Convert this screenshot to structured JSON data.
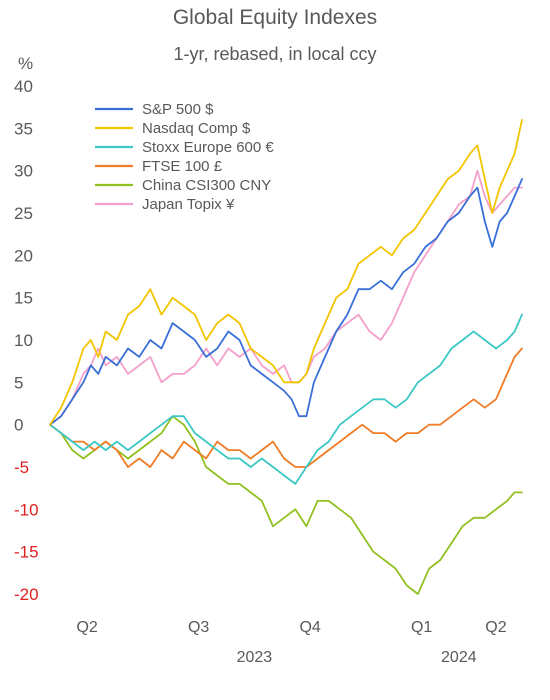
{
  "chart_data": {
    "type": "line",
    "title": "Global Equity Indexes",
    "subtitle": "1-yr, rebased, in local ccy",
    "ylabel": "%",
    "ylim": [
      -20,
      40
    ],
    "yticks": [
      40,
      35,
      30,
      25,
      20,
      15,
      10,
      5,
      0,
      -5,
      -10,
      -15,
      -20
    ],
    "negative_tick_color": "#e02020",
    "positive_tick_color": "#595959",
    "grid": false,
    "legend_position": "top-left",
    "x_range": [
      0,
      12.3
    ],
    "x_unit": "months since start of Q2 2023",
    "xticks": [
      {
        "label": "Q2",
        "x": 1.0
      },
      {
        "label": "Q3",
        "x": 4.0
      },
      {
        "label": "Q4",
        "x": 7.0
      },
      {
        "label": "Q1",
        "x": 10.0
      },
      {
        "label": "Q2",
        "x": 12.0
      }
    ],
    "year_labels": [
      {
        "label": "2023",
        "x": 5.5
      },
      {
        "label": "2024",
        "x": 11.0
      }
    ],
    "series": [
      {
        "name": "S&P 500 $",
        "color": "#3a6fd8",
        "points": [
          [
            0,
            0
          ],
          [
            0.3,
            1
          ],
          [
            0.6,
            3
          ],
          [
            0.9,
            5
          ],
          [
            1.1,
            7
          ],
          [
            1.3,
            6
          ],
          [
            1.5,
            8
          ],
          [
            1.8,
            7
          ],
          [
            2.1,
            9
          ],
          [
            2.4,
            8
          ],
          [
            2.7,
            10
          ],
          [
            3.0,
            9
          ],
          [
            3.3,
            12
          ],
          [
            3.6,
            11
          ],
          [
            3.9,
            10
          ],
          [
            4.2,
            8
          ],
          [
            4.5,
            9
          ],
          [
            4.8,
            11
          ],
          [
            5.1,
            10
          ],
          [
            5.4,
            7
          ],
          [
            5.7,
            6
          ],
          [
            6.0,
            5
          ],
          [
            6.3,
            4
          ],
          [
            6.5,
            3
          ],
          [
            6.7,
            1
          ],
          [
            6.9,
            1
          ],
          [
            7.1,
            5
          ],
          [
            7.4,
            8
          ],
          [
            7.7,
            11
          ],
          [
            8.0,
            13
          ],
          [
            8.3,
            16
          ],
          [
            8.6,
            16
          ],
          [
            8.9,
            17
          ],
          [
            9.2,
            16
          ],
          [
            9.5,
            18
          ],
          [
            9.8,
            19
          ],
          [
            10.1,
            21
          ],
          [
            10.4,
            22
          ],
          [
            10.7,
            24
          ],
          [
            11.0,
            25
          ],
          [
            11.3,
            27
          ],
          [
            11.5,
            28
          ],
          [
            11.7,
            24
          ],
          [
            11.9,
            21
          ],
          [
            12.1,
            24
          ],
          [
            12.3,
            25
          ],
          [
            12.5,
            27
          ],
          [
            12.7,
            29
          ]
        ]
      },
      {
        "name": "Nasdaq Comp $",
        "color": "#f2c500",
        "points": [
          [
            0,
            0
          ],
          [
            0.3,
            2
          ],
          [
            0.6,
            5
          ],
          [
            0.9,
            9
          ],
          [
            1.1,
            10
          ],
          [
            1.3,
            8
          ],
          [
            1.5,
            11
          ],
          [
            1.8,
            10
          ],
          [
            2.1,
            13
          ],
          [
            2.4,
            14
          ],
          [
            2.7,
            16
          ],
          [
            3.0,
            13
          ],
          [
            3.3,
            15
          ],
          [
            3.6,
            14
          ],
          [
            3.9,
            13
          ],
          [
            4.2,
            10
          ],
          [
            4.5,
            12
          ],
          [
            4.8,
            13
          ],
          [
            5.1,
            12
          ],
          [
            5.4,
            9
          ],
          [
            5.7,
            8
          ],
          [
            6.0,
            7
          ],
          [
            6.3,
            5
          ],
          [
            6.5,
            5
          ],
          [
            6.7,
            5
          ],
          [
            6.9,
            6
          ],
          [
            7.1,
            9
          ],
          [
            7.4,
            12
          ],
          [
            7.7,
            15
          ],
          [
            8.0,
            16
          ],
          [
            8.3,
            19
          ],
          [
            8.6,
            20
          ],
          [
            8.9,
            21
          ],
          [
            9.2,
            20
          ],
          [
            9.5,
            22
          ],
          [
            9.8,
            23
          ],
          [
            10.1,
            25
          ],
          [
            10.4,
            27
          ],
          [
            10.7,
            29
          ],
          [
            11.0,
            30
          ],
          [
            11.3,
            32
          ],
          [
            11.5,
            33
          ],
          [
            11.7,
            29
          ],
          [
            11.9,
            25
          ],
          [
            12.1,
            28
          ],
          [
            12.3,
            30
          ],
          [
            12.5,
            32
          ],
          [
            12.7,
            36
          ]
        ]
      },
      {
        "name": "Stoxx Europe 600 €",
        "color": "#3cc8c4",
        "points": [
          [
            0,
            0
          ],
          [
            0.3,
            -1
          ],
          [
            0.6,
            -2
          ],
          [
            0.9,
            -3
          ],
          [
            1.2,
            -2
          ],
          [
            1.5,
            -3
          ],
          [
            1.8,
            -2
          ],
          [
            2.1,
            -3
          ],
          [
            2.4,
            -2
          ],
          [
            2.7,
            -1
          ],
          [
            3.0,
            0
          ],
          [
            3.3,
            1
          ],
          [
            3.6,
            1
          ],
          [
            3.9,
            -1
          ],
          [
            4.2,
            -2
          ],
          [
            4.5,
            -3
          ],
          [
            4.8,
            -4
          ],
          [
            5.1,
            -4
          ],
          [
            5.4,
            -5
          ],
          [
            5.7,
            -4
          ],
          [
            6.0,
            -5
          ],
          [
            6.3,
            -6
          ],
          [
            6.6,
            -7
          ],
          [
            6.9,
            -5
          ],
          [
            7.2,
            -3
          ],
          [
            7.5,
            -2
          ],
          [
            7.8,
            0
          ],
          [
            8.1,
            1
          ],
          [
            8.4,
            2
          ],
          [
            8.7,
            3
          ],
          [
            9.0,
            3
          ],
          [
            9.3,
            2
          ],
          [
            9.6,
            3
          ],
          [
            9.9,
            5
          ],
          [
            10.2,
            6
          ],
          [
            10.5,
            7
          ],
          [
            10.8,
            9
          ],
          [
            11.1,
            10
          ],
          [
            11.4,
            11
          ],
          [
            11.7,
            10
          ],
          [
            12.0,
            9
          ],
          [
            12.3,
            10
          ],
          [
            12.5,
            11
          ],
          [
            12.7,
            13
          ]
        ]
      },
      {
        "name": "FTSE 100 £",
        "color": "#f07c28",
        "points": [
          [
            0,
            0
          ],
          [
            0.3,
            -1
          ],
          [
            0.6,
            -2
          ],
          [
            0.9,
            -2
          ],
          [
            1.2,
            -3
          ],
          [
            1.5,
            -2
          ],
          [
            1.8,
            -3
          ],
          [
            2.1,
            -5
          ],
          [
            2.4,
            -4
          ],
          [
            2.7,
            -5
          ],
          [
            3.0,
            -3
          ],
          [
            3.3,
            -4
          ],
          [
            3.6,
            -2
          ],
          [
            3.9,
            -3
          ],
          [
            4.2,
            -4
          ],
          [
            4.5,
            -2
          ],
          [
            4.8,
            -3
          ],
          [
            5.1,
            -3
          ],
          [
            5.4,
            -4
          ],
          [
            5.7,
            -3
          ],
          [
            6.0,
            -2
          ],
          [
            6.3,
            -4
          ],
          [
            6.6,
            -5
          ],
          [
            6.9,
            -5
          ],
          [
            7.2,
            -4
          ],
          [
            7.5,
            -3
          ],
          [
            7.8,
            -2
          ],
          [
            8.1,
            -1
          ],
          [
            8.4,
            0
          ],
          [
            8.7,
            -1
          ],
          [
            9.0,
            -1
          ],
          [
            9.3,
            -2
          ],
          [
            9.6,
            -1
          ],
          [
            9.9,
            -1
          ],
          [
            10.2,
            0
          ],
          [
            10.5,
            0
          ],
          [
            10.8,
            1
          ],
          [
            11.1,
            2
          ],
          [
            11.4,
            3
          ],
          [
            11.7,
            2
          ],
          [
            12.0,
            3
          ],
          [
            12.3,
            6
          ],
          [
            12.5,
            8
          ],
          [
            12.7,
            9
          ]
        ]
      },
      {
        "name": "China CSI300  CNY",
        "color": "#92c020",
        "points": [
          [
            0,
            0
          ],
          [
            0.3,
            -1
          ],
          [
            0.6,
            -3
          ],
          [
            0.9,
            -4
          ],
          [
            1.2,
            -3
          ],
          [
            1.5,
            -2
          ],
          [
            1.8,
            -3
          ],
          [
            2.1,
            -4
          ],
          [
            2.4,
            -3
          ],
          [
            2.7,
            -2
          ],
          [
            3.0,
            -1
          ],
          [
            3.3,
            1
          ],
          [
            3.6,
            0
          ],
          [
            3.9,
            -2
          ],
          [
            4.2,
            -5
          ],
          [
            4.5,
            -6
          ],
          [
            4.8,
            -7
          ],
          [
            5.1,
            -7
          ],
          [
            5.4,
            -8
          ],
          [
            5.7,
            -9
          ],
          [
            6.0,
            -12
          ],
          [
            6.3,
            -11
          ],
          [
            6.6,
            -10
          ],
          [
            6.9,
            -12
          ],
          [
            7.2,
            -9
          ],
          [
            7.5,
            -9
          ],
          [
            7.8,
            -10
          ],
          [
            8.1,
            -11
          ],
          [
            8.4,
            -13
          ],
          [
            8.7,
            -15
          ],
          [
            9.0,
            -16
          ],
          [
            9.3,
            -17
          ],
          [
            9.6,
            -19
          ],
          [
            9.9,
            -20
          ],
          [
            10.2,
            -17
          ],
          [
            10.5,
            -16
          ],
          [
            10.8,
            -14
          ],
          [
            11.1,
            -12
          ],
          [
            11.4,
            -11
          ],
          [
            11.7,
            -11
          ],
          [
            12.0,
            -10
          ],
          [
            12.3,
            -9
          ],
          [
            12.5,
            -8
          ],
          [
            12.7,
            -8
          ]
        ]
      },
      {
        "name": "Japan Topix ¥",
        "color": "#f4a0cc",
        "points": [
          [
            0,
            0
          ],
          [
            0.3,
            1
          ],
          [
            0.6,
            3
          ],
          [
            0.9,
            6
          ],
          [
            1.1,
            7
          ],
          [
            1.3,
            9
          ],
          [
            1.5,
            7
          ],
          [
            1.8,
            8
          ],
          [
            2.1,
            6
          ],
          [
            2.4,
            7
          ],
          [
            2.7,
            8
          ],
          [
            3.0,
            5
          ],
          [
            3.3,
            6
          ],
          [
            3.6,
            6
          ],
          [
            3.9,
            7
          ],
          [
            4.2,
            9
          ],
          [
            4.5,
            7
          ],
          [
            4.8,
            9
          ],
          [
            5.1,
            8
          ],
          [
            5.4,
            9
          ],
          [
            5.7,
            7
          ],
          [
            6.0,
            6
          ],
          [
            6.3,
            7
          ],
          [
            6.5,
            5
          ],
          [
            6.7,
            5
          ],
          [
            6.9,
            6
          ],
          [
            7.1,
            8
          ],
          [
            7.4,
            9
          ],
          [
            7.7,
            11
          ],
          [
            8.0,
            12
          ],
          [
            8.3,
            13
          ],
          [
            8.6,
            11
          ],
          [
            8.9,
            10
          ],
          [
            9.2,
            12
          ],
          [
            9.5,
            15
          ],
          [
            9.8,
            18
          ],
          [
            10.1,
            20
          ],
          [
            10.4,
            22
          ],
          [
            10.7,
            24
          ],
          [
            11.0,
            26
          ],
          [
            11.3,
            27
          ],
          [
            11.5,
            30
          ],
          [
            11.7,
            27
          ],
          [
            11.9,
            25
          ],
          [
            12.1,
            26
          ],
          [
            12.3,
            27
          ],
          [
            12.5,
            28
          ],
          [
            12.7,
            28
          ]
        ]
      }
    ]
  }
}
